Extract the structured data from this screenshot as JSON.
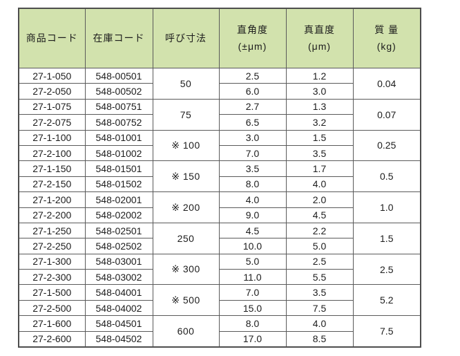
{
  "table": {
    "headers": [
      {
        "label": "商品コード",
        "sub": ""
      },
      {
        "label": "在庫コード",
        "sub": ""
      },
      {
        "label": "呼び寸法",
        "sub": ""
      },
      {
        "label": "直角度",
        "sub": "(±μm)"
      },
      {
        "label": "真直度",
        "sub": "(μm)"
      },
      {
        "label": "質 量",
        "sub": "(kg)"
      }
    ],
    "groups": [
      {
        "size": "50",
        "mass": "0.04",
        "rows": [
          {
            "product_code": "27-1-050",
            "stock_code": "548-00501",
            "squareness": "2.5",
            "straightness": "1.2"
          },
          {
            "product_code": "27-2-050",
            "stock_code": "548-00502",
            "squareness": "6.0",
            "straightness": "3.0"
          }
        ]
      },
      {
        "size": "75",
        "mass": "0.07",
        "rows": [
          {
            "product_code": "27-1-075",
            "stock_code": "548-00751",
            "squareness": "2.7",
            "straightness": "1.3"
          },
          {
            "product_code": "27-2-075",
            "stock_code": "548-00752",
            "squareness": "6.5",
            "straightness": "3.2"
          }
        ]
      },
      {
        "size": "※ 100",
        "mass": "0.25",
        "rows": [
          {
            "product_code": "27-1-100",
            "stock_code": "548-01001",
            "squareness": "3.0",
            "straightness": "1.5"
          },
          {
            "product_code": "27-2-100",
            "stock_code": "548-01002",
            "squareness": "7.0",
            "straightness": "3.5"
          }
        ]
      },
      {
        "size": "※ 150",
        "mass": "0.5",
        "rows": [
          {
            "product_code": "27-1-150",
            "stock_code": "548-01501",
            "squareness": "3.5",
            "straightness": "1.7"
          },
          {
            "product_code": "27-2-150",
            "stock_code": "548-01502",
            "squareness": "8.0",
            "straightness": "4.0"
          }
        ]
      },
      {
        "size": "※ 200",
        "mass": "1.0",
        "rows": [
          {
            "product_code": "27-1-200",
            "stock_code": "548-02001",
            "squareness": "4.0",
            "straightness": "2.0"
          },
          {
            "product_code": "27-2-200",
            "stock_code": "548-02002",
            "squareness": "9.0",
            "straightness": "4.5"
          }
        ]
      },
      {
        "size": "250",
        "mass": "1.5",
        "rows": [
          {
            "product_code": "27-1-250",
            "stock_code": "548-02501",
            "squareness": "4.5",
            "straightness": "2.2"
          },
          {
            "product_code": "27-2-250",
            "stock_code": "548-02502",
            "squareness": "10.0",
            "straightness": "5.0"
          }
        ]
      },
      {
        "size": "※ 300",
        "mass": "2.5",
        "rows": [
          {
            "product_code": "27-1-300",
            "stock_code": "548-03001",
            "squareness": "5.0",
            "straightness": "2.5"
          },
          {
            "product_code": "27-2-300",
            "stock_code": "548-03002",
            "squareness": "11.0",
            "straightness": "5.5"
          }
        ]
      },
      {
        "size": "※ 500",
        "mass": "5.2",
        "rows": [
          {
            "product_code": "27-1-500",
            "stock_code": "548-04001",
            "squareness": "7.0",
            "straightness": "3.5"
          },
          {
            "product_code": "27-2-500",
            "stock_code": "548-04002",
            "squareness": "15.0",
            "straightness": "7.5"
          }
        ]
      },
      {
        "size": "600",
        "mass": "7.5",
        "rows": [
          {
            "product_code": "27-1-600",
            "stock_code": "548-04501",
            "squareness": "8.0",
            "straightness": "4.0"
          },
          {
            "product_code": "27-2-600",
            "stock_code": "548-04502",
            "squareness": "17.0",
            "straightness": "8.5"
          }
        ]
      }
    ]
  },
  "colors": {
    "header_bg": "#d2e2ad",
    "border": "#595959",
    "outer_border": "#4d4d4d",
    "text": "#1c1c1c",
    "body_bg": "#ffffff"
  }
}
